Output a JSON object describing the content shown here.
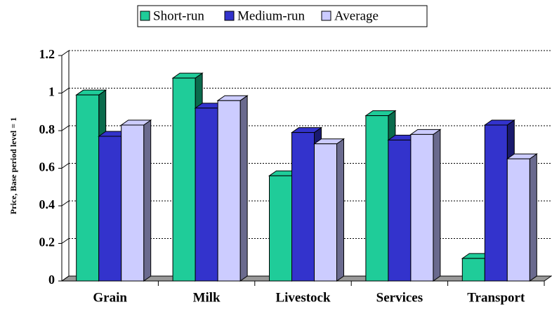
{
  "chart_data": {
    "type": "bar3d",
    "y_label": "Price, Base period level = 1",
    "categories": [
      "Grain",
      "Milk",
      "Livestock",
      "Services",
      "Transport"
    ],
    "series": [
      {
        "name": "Short-run",
        "color": "#1fcc99",
        "side": "#0a6b4c",
        "values": [
          0.99,
          1.08,
          0.56,
          0.88,
          0.12
        ]
      },
      {
        "name": "Medium-run",
        "color": "#3333cc",
        "side": "#1a1a6e",
        "values": [
          0.77,
          0.92,
          0.79,
          0.75,
          0.83
        ]
      },
      {
        "name": "Average",
        "color": "#ccccff",
        "side": "#6a6a8e",
        "values": [
          0.83,
          0.96,
          0.73,
          0.78,
          0.65
        ]
      }
    ],
    "ylim": [
      0,
      1.2
    ],
    "yticks": [
      0,
      0.2,
      0.4,
      0.6,
      0.8,
      1,
      1.2
    ],
    "grid": true
  }
}
